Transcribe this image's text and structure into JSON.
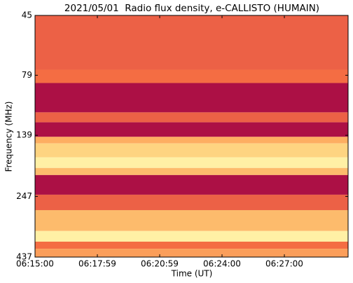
{
  "chart_data": {
    "type": "heatmap",
    "title": "2021/05/01  Radio flux density, e-CALLISTO (HUMAIN)",
    "x_label": "Time (UT)",
    "y_label": "Frequency (MHz)",
    "xticks": [
      "06:15:00",
      "06:17:59",
      "06:20:59",
      "06:24:00",
      "06:27:00"
    ],
    "ylim": [
      45,
      437
    ],
    "y_log": true,
    "y_inverted": true,
    "yticks": [
      45,
      79,
      139,
      247,
      437
    ],
    "y_edges": [
      45,
      75,
      85,
      112,
      123,
      141,
      150,
      171,
      189,
      202,
      243,
      281,
      342,
      378,
      404,
      437
    ],
    "values": [
      0.35,
      0.4,
      0.05,
      0.35,
      0.05,
      0.6,
      0.75,
      0.9,
      0.65,
      0.05,
      0.35,
      0.65,
      0.9,
      0.4,
      0.55
    ],
    "colormap": [
      "#9e0142",
      "#d53e4f",
      "#f46d43",
      "#fdae61",
      "#fee08b",
      "#ffffbf"
    ]
  }
}
